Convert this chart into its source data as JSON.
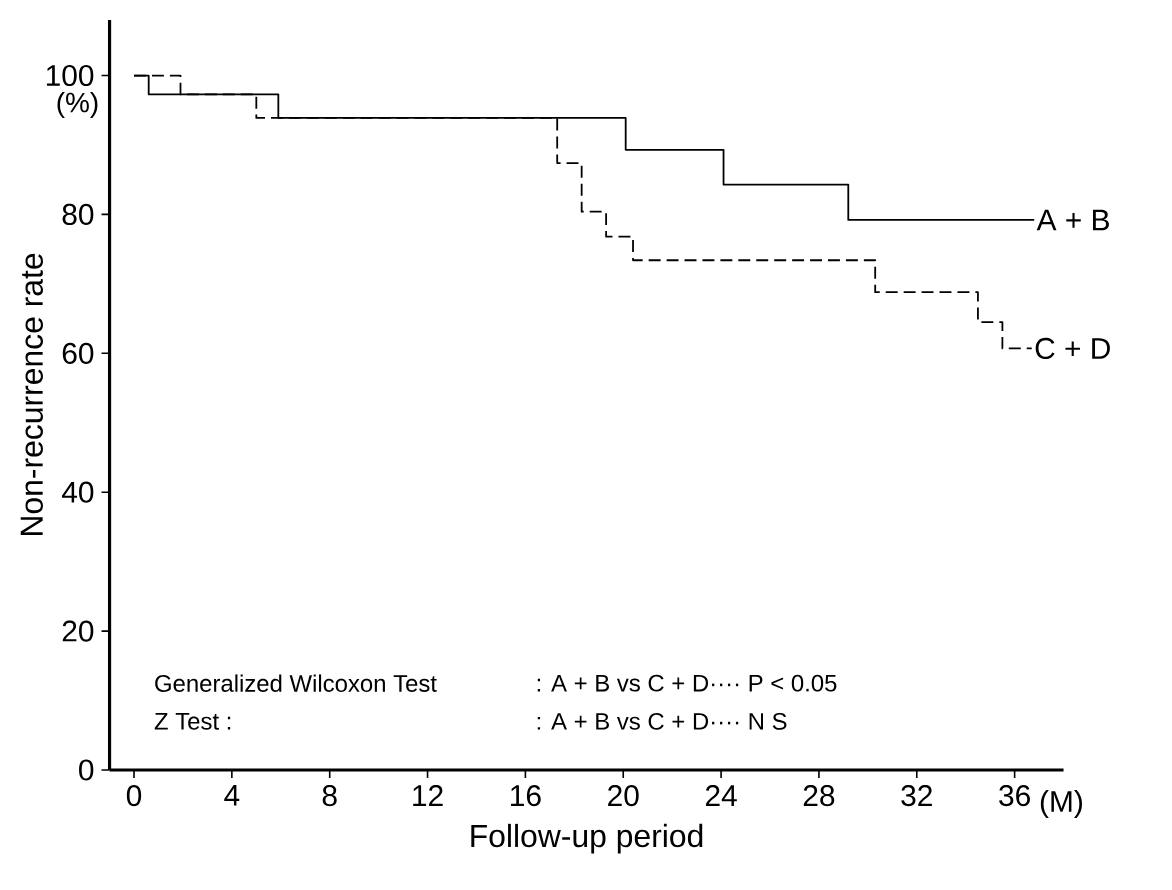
{
  "chart_data": {
    "type": "step",
    "xlabel": "Follow-up  period",
    "ylabel": "Non-recurrence  rate",
    "xlim": [
      -1,
      38
    ],
    "ylim": [
      0,
      108
    ],
    "xticks": [
      0,
      4,
      8,
      12,
      16,
      20,
      24,
      28,
      32,
      36
    ],
    "yticks": [
      0,
      20,
      40,
      60,
      80,
      100
    ],
    "grid": false,
    "marker": "none",
    "series": [
      {
        "name": "A + B",
        "color": "#000000",
        "line_style": "solid",
        "x": [
          0,
          0.6,
          5.9,
          20.1,
          24.1,
          29.2,
          36.8
        ],
        "values": [
          100,
          97.3,
          93.9,
          89.3,
          84.3,
          79.2,
          79.2
        ]
      },
      {
        "name": "C + D",
        "color": "#000000",
        "line_style": "dashed",
        "x": [
          0,
          1.9,
          5.0,
          17.3,
          18.3,
          19.3,
          20.4,
          30.3,
          34.5,
          35.5,
          36.7
        ],
        "values": [
          100,
          97.3,
          93.9,
          87.4,
          80.4,
          76.8,
          73.4,
          68.8,
          64.5,
          60.7,
          60.7
        ]
      }
    ],
    "annotations": [
      "(%)",
      "(M)",
      "Generalized  Wilcoxon  Test",
      ": A + B  vs  C + D···· P < 0.05",
      "Z  Test :",
      ": A + B  vs  C + D···· N S"
    ]
  }
}
